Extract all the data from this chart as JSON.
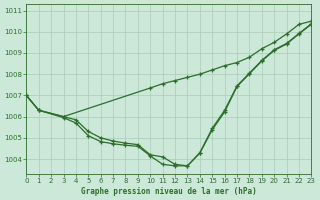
{
  "title": "Graphe pression niveau de la mer (hPa)",
  "background_color": "#cce8d8",
  "grid_color": "#a8ccb8",
  "line_color": "#2d6e2d",
  "xlim": [
    0,
    23
  ],
  "ylim": [
    1003.3,
    1011.3
  ],
  "yticks": [
    1004,
    1005,
    1006,
    1007,
    1008,
    1009,
    1010,
    1011
  ],
  "xticks": [
    0,
    1,
    2,
    3,
    4,
    5,
    6,
    7,
    8,
    9,
    10,
    11,
    12,
    13,
    14,
    15,
    16,
    17,
    18,
    19,
    20,
    21,
    22,
    23
  ],
  "line_top_x": [
    0,
    1,
    3,
    10,
    11,
    12,
    13,
    14,
    15,
    16,
    17,
    18,
    19,
    20,
    21,
    22,
    23
  ],
  "line_top_y": [
    1007.0,
    1006.3,
    1006.0,
    1007.35,
    1007.55,
    1007.7,
    1007.85,
    1008.0,
    1008.2,
    1008.4,
    1008.55,
    1008.8,
    1009.2,
    1009.5,
    1009.9,
    1010.35,
    1010.5
  ],
  "line_mid_x": [
    0,
    1,
    3,
    4,
    5,
    6,
    7,
    8,
    9,
    10,
    11,
    12,
    13,
    14,
    15,
    16,
    17,
    18,
    19,
    20,
    21,
    22,
    23
  ],
  "line_mid_y": [
    1007.0,
    1006.3,
    1006.0,
    1005.85,
    1005.3,
    1005.0,
    1004.85,
    1004.75,
    1004.68,
    1004.2,
    1004.1,
    1003.75,
    1003.68,
    1004.3,
    1005.45,
    1006.3,
    1007.45,
    1008.05,
    1008.65,
    1009.15,
    1009.45,
    1009.92,
    1010.38
  ],
  "line_bot_x": [
    0,
    1,
    3,
    4,
    5,
    6,
    7,
    8,
    9,
    10,
    11,
    12,
    13,
    14,
    15,
    16,
    17,
    18,
    19,
    20,
    21,
    22,
    23
  ],
  "line_bot_y": [
    1007.0,
    1006.3,
    1005.95,
    1005.7,
    1005.1,
    1004.82,
    1004.72,
    1004.65,
    1004.6,
    1004.15,
    1003.75,
    1003.68,
    1003.68,
    1004.28,
    1005.38,
    1006.22,
    1007.42,
    1008.02,
    1008.62,
    1009.12,
    1009.42,
    1009.9,
    1010.35
  ]
}
